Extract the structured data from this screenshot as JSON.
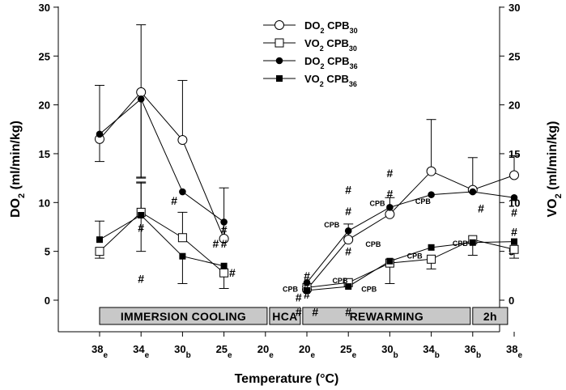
{
  "chart_data": {
    "type": "line",
    "title": "",
    "xlabel": "Temperature (°C)",
    "ylabel_left": "DO2 (ml/min/kg)",
    "ylabel_right": "VO2 (ml/min/kg)",
    "ylim": [
      -3,
      30
    ],
    "yticks": [
      0,
      5,
      10,
      15,
      20,
      25,
      30
    ],
    "x_ticks": [
      {
        "base": "38",
        "sub": "e"
      },
      {
        "base": "34",
        "sub": "e"
      },
      {
        "base": "30",
        "sub": "b"
      },
      {
        "base": "25",
        "sub": "e"
      },
      {
        "base": "20",
        "sub": "e"
      },
      {
        "base": "20",
        "sub": "e"
      },
      {
        "base": "25",
        "sub": "e"
      },
      {
        "base": "30",
        "sub": "b"
      },
      {
        "base": "34",
        "sub": "b"
      },
      {
        "base": "36",
        "sub": "b"
      },
      {
        "base": "38",
        "sub": "e"
      }
    ],
    "phases": [
      {
        "label": "IMMERSION COOLING",
        "from": 0,
        "to": 4.1
      },
      {
        "label": "HCA",
        "from": 4.1,
        "to": 4.9
      },
      {
        "label": "REWARMING",
        "from": 4.9,
        "to": 9.0
      },
      {
        "label": "2h",
        "from": 9.0,
        "to": 9.9
      }
    ],
    "legend": [
      {
        "main": "DO",
        "sub1": "2",
        "rest": " CPB",
        "sub2": "30",
        "series": "DO2 CPB30"
      },
      {
        "main": "VO",
        "sub1": "2",
        "rest": " CPB",
        "sub2": "30",
        "series": "VO2 CPB30"
      },
      {
        "main": "DO",
        "sub1": "2",
        "rest": " CPB",
        "sub2": "36",
        "series": "DO2 CPB36"
      },
      {
        "main": "VO",
        "sub1": "2",
        "rest": " CPB",
        "sub2": "36",
        "series": "VO2 CPB36"
      }
    ],
    "series": [
      {
        "name": "DO2 CPB30",
        "marker": "circle",
        "filled": false,
        "segments": [
          {
            "x": [
              0,
              1,
              2,
              3
            ],
            "y": [
              16.5,
              21.3,
              16.4,
              6.3
            ],
            "err_up": [
              5.5,
              6.9,
              6.1,
              5.2
            ],
            "err_down": [
              2.3,
              8.7,
              0,
              0
            ]
          },
          {
            "x": [
              5,
              6,
              7,
              8,
              9,
              10
            ],
            "y": [
              1.1,
              6.2,
              8.8,
              13.2,
              11.3,
              12.8
            ],
            "err_up": [
              0.3,
              1.6,
              1.7,
              5.3,
              3.3,
              2.0
            ],
            "err_down": [
              0,
              0,
              0,
              0,
              0,
              0
            ]
          }
        ]
      },
      {
        "name": "VO2 CPB30",
        "marker": "square",
        "filled": false,
        "segments": [
          {
            "x": [
              0,
              1,
              2,
              3
            ],
            "y": [
              5.0,
              9.0,
              6.4,
              2.8
            ],
            "err_up": [
              0,
              3.0,
              2.6,
              0
            ],
            "err_down": [
              0.7,
              0,
              0,
              1.6
            ]
          },
          {
            "x": [
              5,
              6,
              7,
              8,
              9,
              10
            ],
            "y": [
              1.3,
              1.8,
              3.8,
              4.2,
              6.2,
              5.2
            ],
            "err_up": [
              0,
              0,
              0,
              0,
              0,
              0
            ],
            "err_down": [
              0,
              0,
              2.1,
              1.0,
              1.6,
              0.9
            ]
          }
        ]
      },
      {
        "name": "DO2 CPB36",
        "marker": "circle",
        "filled": true,
        "segments": [
          {
            "x": [
              0,
              1,
              2,
              3
            ],
            "y": [
              17.0,
              20.6,
              11.1,
              8.0
            ],
            "err_up": [
              0,
              0,
              0,
              0
            ],
            "err_down": [
              0,
              8.1,
              0,
              0
            ]
          },
          {
            "x": [
              5,
              6,
              7,
              8,
              9,
              10
            ],
            "y": [
              1.8,
              7.1,
              9.5,
              10.8,
              11.1,
              10.5
            ],
            "err_up": [
              0,
              0,
              0,
              0,
              0,
              0
            ],
            "err_down": [
              0,
              0,
              0,
              0,
              0,
              0
            ]
          }
        ]
      },
      {
        "name": "VO2 CPB36",
        "marker": "square",
        "filled": true,
        "segments": [
          {
            "x": [
              0,
              1,
              2,
              3
            ],
            "y": [
              6.2,
              8.7,
              4.5,
              3.5
            ],
            "err_up": [
              1.9,
              3.4,
              0,
              0
            ],
            "err_down": [
              0,
              3.7,
              2.8,
              0
            ]
          },
          {
            "x": [
              5,
              6,
              7,
              8,
              9,
              10
            ],
            "y": [
              1.0,
              1.4,
              4.0,
              5.4,
              5.9,
              6.0
            ],
            "err_up": [
              0,
              0,
              0,
              0,
              0,
              0
            ],
            "err_down": [
              0,
              0,
              0,
              0,
              0,
              0
            ]
          }
        ]
      }
    ],
    "annotations": [
      {
        "text": "#",
        "x": 1.0,
        "y": 7.4
      },
      {
        "text": "#",
        "x": 1.0,
        "y": 2.2
      },
      {
        "text": "#",
        "x": 1.8,
        "y": 10.2
      },
      {
        "text": "#",
        "x": 3.0,
        "y": 5.8
      },
      {
        "text": "#",
        "x": 3.0,
        "y": 7.2
      },
      {
        "text": "#",
        "x": 2.8,
        "y": 5.8
      },
      {
        "text": "#",
        "x": 3.2,
        "y": 2.8
      },
      {
        "text": "#",
        "x": 5.0,
        "y": 2.5
      },
      {
        "text": "#",
        "x": 5.0,
        "y": 1.7
      },
      {
        "text": "#",
        "x": 5.0,
        "y": 0.6
      },
      {
        "text": "#",
        "x": 4.8,
        "y": 0.3
      },
      {
        "text": "#",
        "x": 4.8,
        "y": -1.2
      },
      {
        "text": "#",
        "x": 5.2,
        "y": -1.2
      },
      {
        "text": "#",
        "x": 6.0,
        "y": 11.3
      },
      {
        "text": "#",
        "x": 6.0,
        "y": 9.1
      },
      {
        "text": "#",
        "x": 6.0,
        "y": 5.0
      },
      {
        "text": "#",
        "x": 6.0,
        "y": -1.2
      },
      {
        "text": "#",
        "x": 7.0,
        "y": 13.0
      },
      {
        "text": "#",
        "x": 7.0,
        "y": 10.9
      },
      {
        "text": "#",
        "x": 9.2,
        "y": 9.4
      },
      {
        "text": "#",
        "x": 10.0,
        "y": 9.0
      },
      {
        "text": "#",
        "x": 10.0,
        "y": 7.0
      },
      {
        "text": "CPB",
        "x": 4.6,
        "y": 1.1
      },
      {
        "text": "CPB",
        "x": 5.8,
        "y": 2.0
      },
      {
        "text": "CPB",
        "x": 6.5,
        "y": 1.1
      },
      {
        "text": "CPB",
        "x": 6.6,
        "y": 5.7
      },
      {
        "text": "CPB",
        "x": 5.6,
        "y": 7.7
      },
      {
        "text": "CPB",
        "x": 6.7,
        "y": 9.9
      },
      {
        "text": "CPB",
        "x": 7.8,
        "y": 10.1
      },
      {
        "text": "CPB",
        "x": 7.6,
        "y": 4.5
      },
      {
        "text": "CPB",
        "x": 8.7,
        "y": 5.8
      }
    ]
  }
}
